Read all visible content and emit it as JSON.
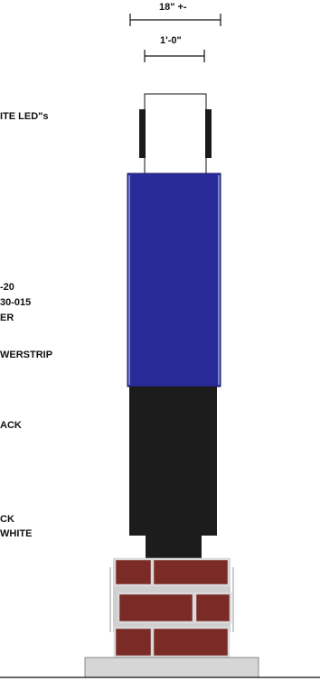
{
  "dimensions": {
    "overall_width": "18\" +-",
    "post_width": "1'-0\""
  },
  "callouts": {
    "led": "ITE LED\"s",
    "spec_1": "-20",
    "spec_2": "30-015",
    "spec_3": "ER",
    "powerstrip": "WERSTRIP",
    "black_upper": "ACK",
    "black_lower": "CK",
    "white": "WHITE"
  },
  "colors": {
    "blue_panel": "#2a2a9a",
    "black_column": "#1c1c1c",
    "brick": "#7a2b26",
    "mortar": "#cfcfcf",
    "base": "#d6d6d6"
  }
}
